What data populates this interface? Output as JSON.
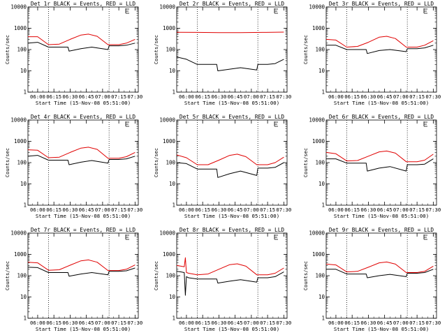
{
  "figure": {
    "colors": {
      "events": "#000000",
      "lld": "#e00000",
      "axis": "#000000",
      "background": "#ffffff"
    }
  },
  "chart_data": [
    {
      "type": "line",
      "title": "Det 1r BLACK = Events, RED = LLD",
      "xlabel": "Start Time (15-Nov-08 05:51:00)",
      "ylabel": "Counts/sec",
      "y_scale": "log",
      "ylim": [
        1,
        10000
      ],
      "y_ticks": [
        1,
        10,
        100,
        1000,
        10000
      ],
      "x_tick_labels": [
        "06:00",
        "06:15",
        "06:30",
        "06:45",
        "07:00",
        "07:15",
        "07:30"
      ],
      "dotted_lines_at": [
        "06:10",
        "07:06"
      ],
      "legend_placement": "top-right",
      "grid": false,
      "series": [
        {
          "name": "RED = LLD",
          "color": "#e00000",
          "x": [
            "05:51",
            "06:00",
            "06:10",
            "06:20",
            "06:30",
            "06:40",
            "06:47",
            "06:55",
            "07:05",
            "07:15",
            "07:22",
            "07:30"
          ],
          "y": [
            400,
            400,
            170,
            180,
            300,
            480,
            530,
            420,
            170,
            170,
            200,
            300
          ]
        },
        {
          "name": "BLACK = Events",
          "color": "#000000",
          "x": [
            "05:51",
            "06:00",
            "06:10",
            "06:28",
            "06:29",
            "06:40",
            "06:50",
            "07:05",
            "07:06",
            "07:15",
            "07:22",
            "07:30"
          ],
          "y": [
            200,
            220,
            130,
            130,
            85,
            110,
            130,
            100,
            150,
            150,
            160,
            200
          ]
        }
      ]
    },
    {
      "type": "line",
      "title": "Det 2r BLACK = Events, RED = LLD",
      "xlabel": "Start Time (15-Nov-08 05:51:00)",
      "ylabel": "Counts/sec",
      "y_scale": "log",
      "ylim": [
        1,
        10000
      ],
      "y_ticks": [
        1,
        10,
        100,
        1000,
        10000
      ],
      "x_tick_labels": [
        "06:00",
        "06:15",
        "06:30",
        "06:45",
        "07:00",
        "07:15",
        "07:30"
      ],
      "dotted_lines_at": [
        "06:10",
        "07:06"
      ],
      "legend_placement": "top-right",
      "grid": false,
      "series": [
        {
          "name": "RED = LLD",
          "color": "#e00000",
          "x": [
            "05:51",
            "06:10",
            "06:30",
            "06:50",
            "07:10",
            "07:30"
          ],
          "y": [
            650,
            640,
            620,
            620,
            640,
            660
          ]
        },
        {
          "name": "BLACK = Events",
          "color": "#000000",
          "x": [
            "05:51",
            "06:00",
            "06:10",
            "06:28",
            "06:29",
            "06:40",
            "06:50",
            "07:05",
            "07:06",
            "07:15",
            "07:22",
            "07:30"
          ],
          "y": [
            45,
            35,
            20,
            20,
            10,
            12,
            14,
            11,
            20,
            20,
            22,
            35
          ]
        }
      ]
    },
    {
      "type": "line",
      "title": "Det 3r BLACK = Events, RED = LLD",
      "xlabel": "Start Time (15-Nov-08 05:51:00)",
      "ylabel": "Counts/sec",
      "y_scale": "log",
      "ylim": [
        1,
        10000
      ],
      "y_ticks": [
        1,
        10,
        100,
        1000,
        10000
      ],
      "x_tick_labels": [
        "06:00",
        "06:15",
        "06:30",
        "06:45",
        "07:00",
        "07:15",
        "07:30"
      ],
      "dotted_lines_at": [
        "06:10",
        "07:06"
      ],
      "legend_placement": "top-right",
      "grid": false,
      "series": [
        {
          "name": "RED = LLD",
          "color": "#e00000",
          "x": [
            "05:51",
            "06:00",
            "06:10",
            "06:20",
            "06:30",
            "06:40",
            "06:47",
            "06:55",
            "07:05",
            "07:15",
            "07:22",
            "07:30"
          ],
          "y": [
            300,
            280,
            130,
            140,
            220,
            380,
            420,
            330,
            130,
            130,
            160,
            260
          ]
        },
        {
          "name": "BLACK = Events",
          "color": "#000000",
          "x": [
            "05:51",
            "06:00",
            "06:10",
            "06:28",
            "06:29",
            "06:40",
            "06:50",
            "07:05",
            "07:06",
            "07:15",
            "07:22",
            "07:30"
          ],
          "y": [
            160,
            160,
            100,
            100,
            65,
            90,
            100,
            80,
            110,
            110,
            120,
            160
          ]
        }
      ]
    },
    {
      "type": "line",
      "title": "Det 4r BLACK = Events, RED = LLD",
      "xlabel": "Start Time (15-Nov-08 05:51:00)",
      "ylabel": "Counts/sec",
      "y_scale": "log",
      "ylim": [
        1,
        10000
      ],
      "y_ticks": [
        1,
        10,
        100,
        1000,
        10000
      ],
      "x_tick_labels": [
        "06:00",
        "06:15",
        "06:30",
        "06:45",
        "07:00",
        "07:15",
        "07:30"
      ],
      "dotted_lines_at": [
        "06:10",
        "07:06"
      ],
      "legend_placement": "top-right",
      "grid": false,
      "series": [
        {
          "name": "RED = LLD",
          "color": "#e00000",
          "x": [
            "05:51",
            "06:00",
            "06:10",
            "06:20",
            "06:30",
            "06:40",
            "06:47",
            "06:55",
            "07:05",
            "07:15",
            "07:22",
            "07:30"
          ],
          "y": [
            400,
            380,
            170,
            180,
            300,
            480,
            530,
            420,
            160,
            160,
            190,
            300
          ]
        },
        {
          "name": "BLACK = Events",
          "color": "#000000",
          "x": [
            "05:51",
            "06:00",
            "06:10",
            "06:28",
            "06:29",
            "06:40",
            "06:50",
            "07:05",
            "07:06",
            "07:15",
            "07:22",
            "07:30"
          ],
          "y": [
            200,
            220,
            130,
            130,
            80,
            105,
            125,
            95,
            140,
            140,
            150,
            200
          ]
        }
      ]
    },
    {
      "type": "line",
      "title": "Det 5r BLACK = Events, RED = LLD",
      "xlabel": "Start Time (15-Nov-08 05:51:00)",
      "ylabel": "Counts/sec",
      "y_scale": "log",
      "ylim": [
        1,
        10000
      ],
      "y_ticks": [
        1,
        10,
        100,
        1000,
        10000
      ],
      "x_tick_labels": [
        "06:00",
        "06:15",
        "06:30",
        "06:45",
        "07:00",
        "07:15",
        "07:30"
      ],
      "dotted_lines_at": [
        "06:10",
        "07:06"
      ],
      "legend_placement": "top-right",
      "grid": false,
      "series": [
        {
          "name": "RED = LLD",
          "color": "#e00000",
          "x": [
            "05:51",
            "06:00",
            "06:10",
            "06:20",
            "06:30",
            "06:40",
            "06:47",
            "06:55",
            "07:05",
            "07:15",
            "07:22",
            "07:30"
          ],
          "y": [
            230,
            170,
            80,
            80,
            130,
            220,
            250,
            190,
            80,
            80,
            100,
            180
          ]
        },
        {
          "name": "BLACK = Events",
          "color": "#000000",
          "x": [
            "05:51",
            "06:00",
            "06:10",
            "06:28",
            "06:29",
            "06:40",
            "06:50",
            "07:05",
            "07:06",
            "07:15",
            "07:22",
            "07:30"
          ],
          "y": [
            100,
            90,
            50,
            50,
            20,
            30,
            40,
            25,
            55,
            55,
            60,
            100
          ]
        }
      ]
    },
    {
      "type": "line",
      "title": "Det 6r BLACK = Events, RED = LLD",
      "xlabel": "Start Time (15-Nov-08 05:51:00)",
      "ylabel": "Counts/sec",
      "y_scale": "log",
      "ylim": [
        1,
        10000
      ],
      "y_ticks": [
        1,
        10,
        100,
        1000,
        10000
      ],
      "x_tick_labels": [
        "06:00",
        "06:15",
        "06:30",
        "06:45",
        "07:00",
        "07:15",
        "07:30"
      ],
      "dotted_lines_at": [
        "06:10",
        "07:06"
      ],
      "legend_placement": "top-right",
      "grid": false,
      "series": [
        {
          "name": "RED = LLD",
          "color": "#e00000",
          "x": [
            "05:51",
            "06:00",
            "06:10",
            "06:20",
            "06:30",
            "06:40",
            "06:47",
            "06:55",
            "07:05",
            "07:15",
            "07:22",
            "07:30"
          ],
          "y": [
            300,
            260,
            120,
            125,
            200,
            320,
            350,
            280,
            110,
            110,
            130,
            250
          ]
        },
        {
          "name": "BLACK = Events",
          "color": "#000000",
          "x": [
            "05:51",
            "06:00",
            "06:10",
            "06:28",
            "06:29",
            "06:40",
            "06:50",
            "07:05",
            "07:06",
            "07:15",
            "07:22",
            "07:30"
          ],
          "y": [
            150,
            150,
            95,
            95,
            40,
            55,
            65,
            40,
            80,
            80,
            85,
            150
          ]
        }
      ]
    },
    {
      "type": "line",
      "title": "Det 7r BLACK = Events, RED = LLD",
      "xlabel": "Start Time (15-Nov-08 05:51:00)",
      "ylabel": "Counts/sec",
      "y_scale": "log",
      "ylim": [
        1,
        10000
      ],
      "y_ticks": [
        1,
        10,
        100,
        1000,
        10000
      ],
      "x_tick_labels": [
        "06:00",
        "06:15",
        "06:30",
        "06:45",
        "07:00",
        "07:15",
        "07:30"
      ],
      "dotted_lines_at": [
        "06:10",
        "07:06"
      ],
      "legend_placement": "top-right",
      "grid": false,
      "series": [
        {
          "name": "RED = LLD",
          "color": "#e00000",
          "x": [
            "05:51",
            "06:00",
            "06:10",
            "06:20",
            "06:30",
            "06:40",
            "06:47",
            "06:55",
            "07:05",
            "07:15",
            "07:22",
            "07:30"
          ],
          "y": [
            430,
            400,
            180,
            190,
            310,
            500,
            550,
            430,
            175,
            175,
            200,
            320
          ]
        },
        {
          "name": "BLACK = Events",
          "color": "#000000",
          "x": [
            "05:51",
            "06:00",
            "06:10",
            "06:28",
            "06:29",
            "06:40",
            "06:50",
            "07:05",
            "07:06",
            "07:15",
            "07:22",
            "07:30"
          ],
          "y": [
            250,
            240,
            140,
            140,
            95,
            120,
            140,
            110,
            160,
            160,
            170,
            230
          ]
        }
      ]
    },
    {
      "type": "line",
      "title": "Det 8r BLACK = Events, RED = LLD",
      "xlabel": "Start Time (15-Nov-08 05:51:00)",
      "ylabel": "Counts/sec",
      "y_scale": "log",
      "ylim": [
        1,
        10000
      ],
      "y_ticks": [
        1,
        10,
        100,
        1000,
        10000
      ],
      "x_tick_labels": [
        "06:00",
        "06:15",
        "06:30",
        "06:45",
        "07:00",
        "07:15",
        "07:30"
      ],
      "dotted_lines_at": [
        "06:10",
        "07:06"
      ],
      "legend_placement": "top-right",
      "grid": false,
      "series": [
        {
          "name": "RED = LLD",
          "color": "#e00000",
          "x": [
            "05:51",
            "05:55",
            "05:58",
            "05:59",
            "06:00",
            "06:02",
            "06:10",
            "06:20",
            "06:30",
            "06:40",
            "06:47",
            "06:55",
            "07:05",
            "07:15",
            "07:22",
            "07:30"
          ],
          "y": [
            300,
            280,
            260,
            700,
            140,
            130,
            110,
            120,
            200,
            330,
            360,
            280,
            110,
            110,
            130,
            230
          ]
        },
        {
          "name": "BLACK = Events",
          "color": "#000000",
          "x": [
            "05:51",
            "05:55",
            "05:58",
            "05:59",
            "06:00",
            "06:02",
            "06:10",
            "06:28",
            "06:29",
            "06:40",
            "06:50",
            "07:05",
            "07:06",
            "07:15",
            "07:22",
            "07:30"
          ],
          "y": [
            160,
            150,
            140,
            12,
            90,
            80,
            70,
            70,
            45,
            55,
            65,
            50,
            80,
            80,
            90,
            150
          ]
        }
      ]
    },
    {
      "type": "line",
      "title": "Det 9r BLACK = Events, RED = LLD",
      "xlabel": "Start Time (15-Nov-08 05:51:00)",
      "ylabel": "Counts/sec",
      "y_scale": "log",
      "ylim": [
        1,
        10000
      ],
      "y_ticks": [
        1,
        10,
        100,
        1000,
        10000
      ],
      "x_tick_labels": [
        "06:00",
        "06:15",
        "06:30",
        "06:45",
        "07:00",
        "07:15",
        "07:30"
      ],
      "dotted_lines_at": [
        "06:10",
        "07:06"
      ],
      "legend_placement": "top-right",
      "grid": false,
      "series": [
        {
          "name": "RED = LLD",
          "color": "#e00000",
          "x": [
            "05:51",
            "06:00",
            "06:10",
            "06:20",
            "06:30",
            "06:40",
            "06:47",
            "06:55",
            "07:05",
            "07:15",
            "07:22",
            "07:30"
          ],
          "y": [
            350,
            320,
            150,
            160,
            250,
            400,
            440,
            350,
            140,
            140,
            160,
            280
          ]
        },
        {
          "name": "BLACK = Events",
          "color": "#000000",
          "x": [
            "05:51",
            "06:00",
            "06:10",
            "06:28",
            "06:29",
            "06:40",
            "06:50",
            "07:05",
            "07:06",
            "07:15",
            "07:22",
            "07:30"
          ],
          "y": [
            200,
            200,
            120,
            120,
            80,
            100,
            115,
            90,
            130,
            130,
            140,
            200
          ]
        }
      ]
    }
  ]
}
